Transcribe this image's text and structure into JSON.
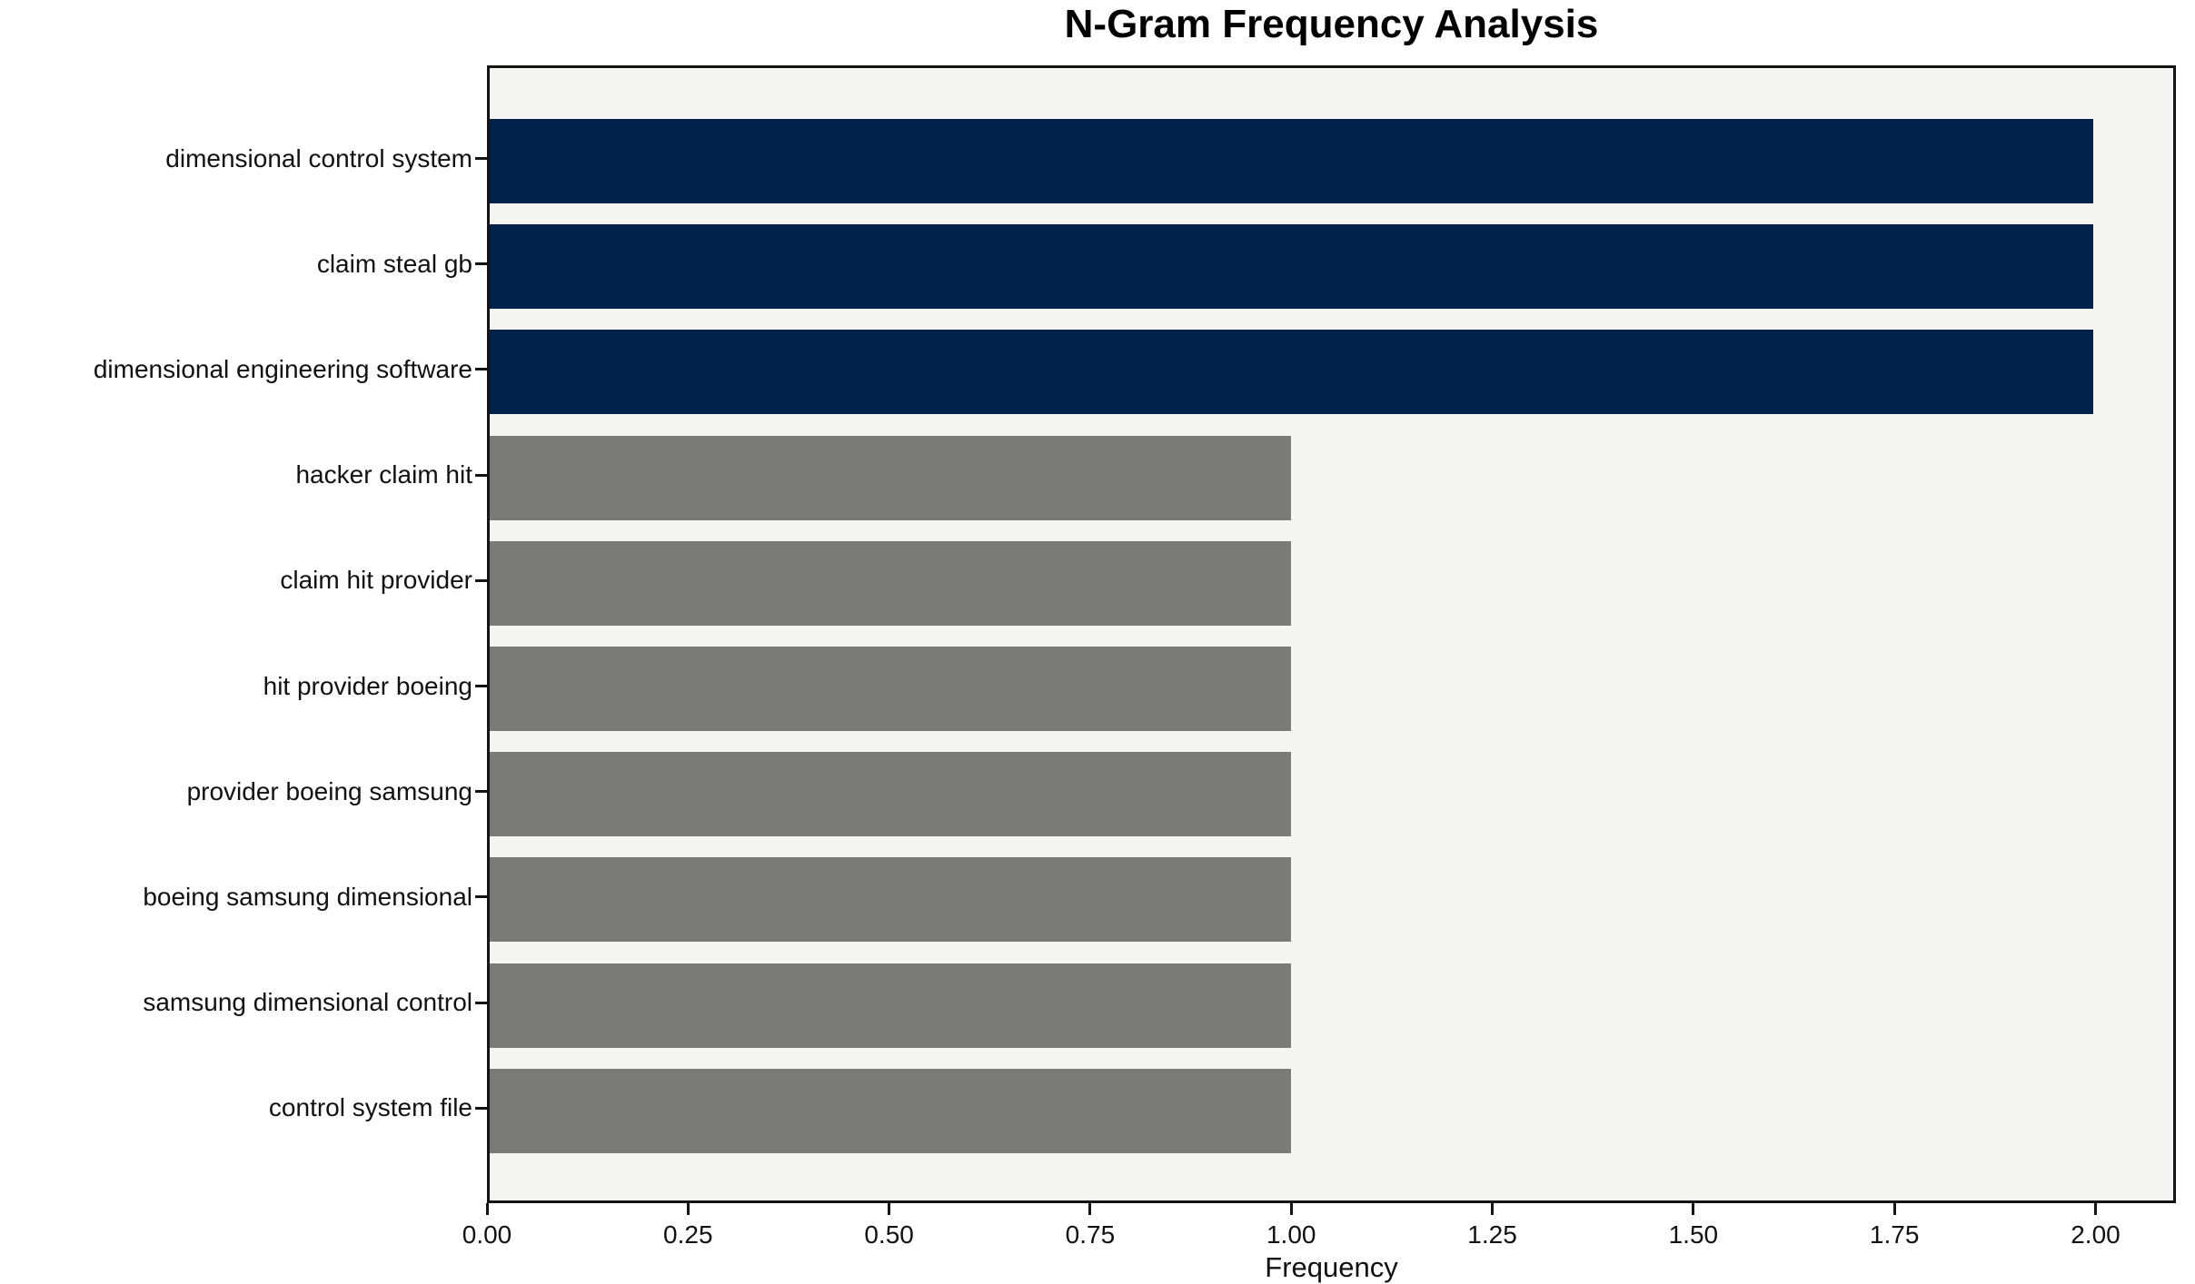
{
  "chart_data": {
    "type": "bar",
    "orientation": "horizontal",
    "title": "N-Gram Frequency Analysis",
    "xlabel": "Frequency",
    "ylabel": "",
    "categories": [
      "dimensional control system",
      "claim steal gb",
      "dimensional engineering software",
      "hacker claim hit",
      "claim hit provider",
      "hit provider boeing",
      "provider boeing samsung",
      "boeing samsung dimensional",
      "samsung dimensional control",
      "control system file"
    ],
    "values": [
      2,
      2,
      2,
      1,
      1,
      1,
      1,
      1,
      1,
      1
    ],
    "bar_colors": [
      "#02224a",
      "#02224a",
      "#02224a",
      "#7a7a77",
      "#7a7a77",
      "#7a7a77",
      "#7a7a77",
      "#7a7a77",
      "#7a7a77",
      "#7a7a77"
    ],
    "xlim": [
      0,
      2.1
    ],
    "xticks": [
      {
        "label": "0.00",
        "value": 0.0
      },
      {
        "label": "0.25",
        "value": 0.25
      },
      {
        "label": "0.50",
        "value": 0.5
      },
      {
        "label": "0.75",
        "value": 0.75
      },
      {
        "label": "1.00",
        "value": 1.0
      },
      {
        "label": "1.25",
        "value": 1.25
      },
      {
        "label": "1.50",
        "value": 1.5
      },
      {
        "label": "1.75",
        "value": 1.75
      },
      {
        "label": "2.00",
        "value": 2.0
      }
    ],
    "grid": false,
    "legend": "none",
    "colors": {
      "highlight_bar": "#02224a",
      "default_bar": "#7a7a77",
      "plot_background": "#f5f5f4",
      "figure_background": "#ffffff",
      "axis": "#141414",
      "text": "#111111"
    }
  }
}
